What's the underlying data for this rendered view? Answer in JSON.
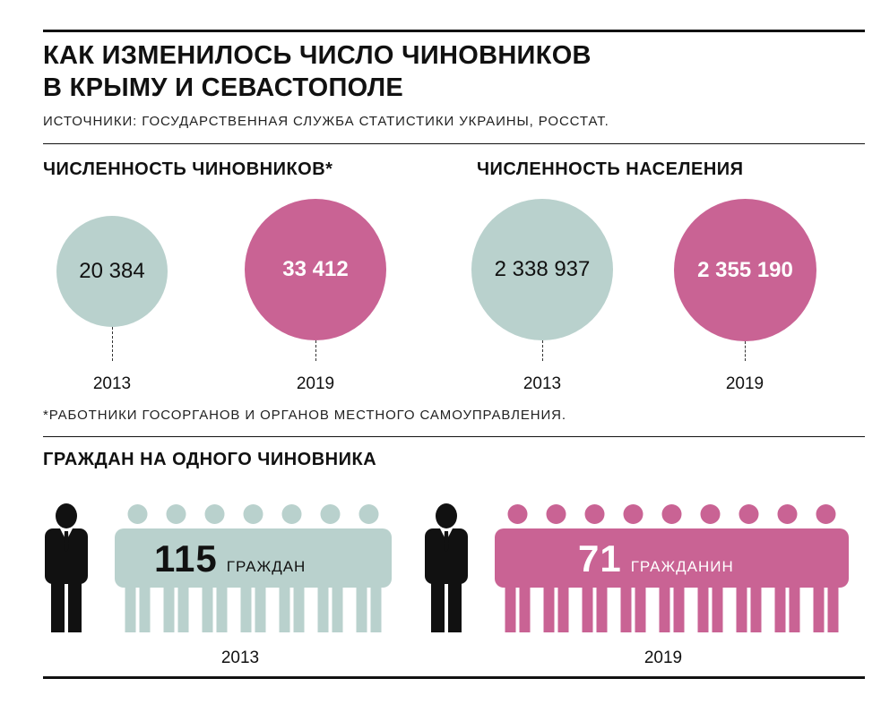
{
  "title": {
    "line1": "КАК ИЗМЕНИЛОСЬ ЧИСЛО ЧИНОВНИКОВ",
    "line2": "В КРЫМУ И СЕВАСТОПОЛЕ"
  },
  "source": "ИСТОЧНИКИ: ГОСУДАРСТВЕННАЯ СЛУЖБА СТАТИСТИКИ УКРАИНЫ, РОССТАТ.",
  "colors": {
    "y2013": "#b9d1cd",
    "y2019": "#c96394",
    "official": "#111111"
  },
  "chart_data": [
    {
      "type": "bubble",
      "title": "ЧИСЛЕННОСТЬ ЧИНОВНИКОВ*",
      "categories": [
        "2013",
        "2019"
      ],
      "values": [
        20384,
        33412
      ],
      "labels": [
        "20 384",
        "33 412"
      ]
    },
    {
      "type": "bubble",
      "title": "ЧИСЛЕННОСТЬ НАСЕЛЕНИЯ",
      "categories": [
        "2013",
        "2019"
      ],
      "values": [
        2338937,
        2355190
      ],
      "labels": [
        "2 338 937",
        "2 355 190"
      ]
    },
    {
      "type": "pictogram",
      "title": "ГРАЖДАН НА ОДНОГО ЧИНОВНИКА",
      "categories": [
        "2013",
        "2019"
      ],
      "values": [
        115,
        71
      ],
      "number_labels": [
        "115",
        "71"
      ],
      "units": [
        "ГРАЖДАН",
        "ГРАЖДАНИН"
      ]
    }
  ],
  "footnote": "*РАБОТНИКИ ГОСОРГАНОВ И ОРГАНОВ МЕСТНОГО САМОУПРАВЛЕНИЯ."
}
